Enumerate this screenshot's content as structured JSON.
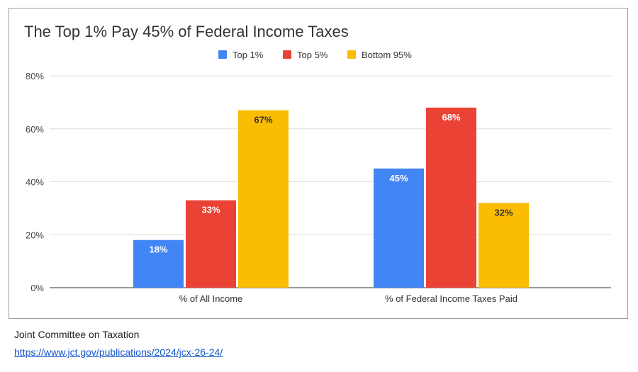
{
  "chart_data": {
    "type": "bar",
    "title": "The Top 1% Pay 45% of Federal Income Taxes",
    "categories": [
      "% of All Income",
      "% of Federal Income Taxes Paid"
    ],
    "series": [
      {
        "name": "Top 1%",
        "color": "#4285f4",
        "values": [
          18,
          45
        ],
        "labels": [
          "18%",
          "45%"
        ],
        "label_color": "#ffffff"
      },
      {
        "name": "Top 5%",
        "color": "#ea4335",
        "values": [
          33,
          68
        ],
        "labels": [
          "33%",
          "68%"
        ],
        "label_color": "#ffffff"
      },
      {
        "name": "Bottom 95%",
        "color": "#fbbc04",
        "values": [
          67,
          32
        ],
        "labels": [
          "67%",
          "32%"
        ],
        "label_color": "#333333"
      }
    ],
    "xlabel": "",
    "ylabel": "",
    "ylim": [
      0,
      80
    ],
    "yticks": [
      0,
      20,
      40,
      60,
      80
    ],
    "ytick_labels": [
      "0%",
      "20%",
      "40%",
      "60%",
      "80%"
    ],
    "grid": true,
    "legend": "top-center"
  },
  "source": {
    "name": "Joint Committee on Taxation",
    "link": "https://www.jct.gov/publications/2024/jcx-26-24/"
  }
}
